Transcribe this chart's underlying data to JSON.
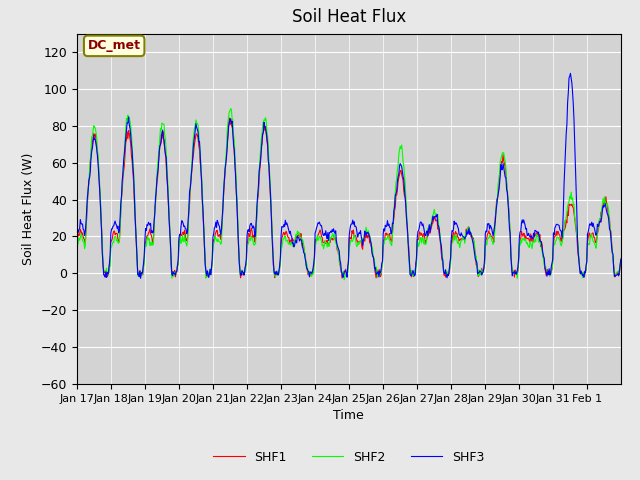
{
  "title": "Soil Heat Flux",
  "xlabel": "Time",
  "ylabel": "Soil Heat Flux (W)",
  "ylim": [
    -60,
    130
  ],
  "yticks": [
    -60,
    -40,
    -20,
    0,
    20,
    40,
    60,
    80,
    100,
    120
  ],
  "annotation": "DC_met",
  "legend": [
    "SHF1",
    "SHF2",
    "SHF3"
  ],
  "colors": [
    "red",
    "lime",
    "blue"
  ],
  "background_color": "#e8e8e8",
  "plot_bg_color": "#d3d3d3",
  "xtick_labels": [
    "Jan 17",
    "Jan 18",
    "Jan 19",
    "Jan 20",
    "Jan 21",
    "Jan 22",
    "Jan 23",
    "Jan 24",
    "Jan 25",
    "Jan 26",
    "Jan 27",
    "Jan 28",
    "Jan 29",
    "Jan 30",
    "Jan 31",
    "Feb 1"
  ],
  "n_days": 16,
  "n_per_day": 48
}
